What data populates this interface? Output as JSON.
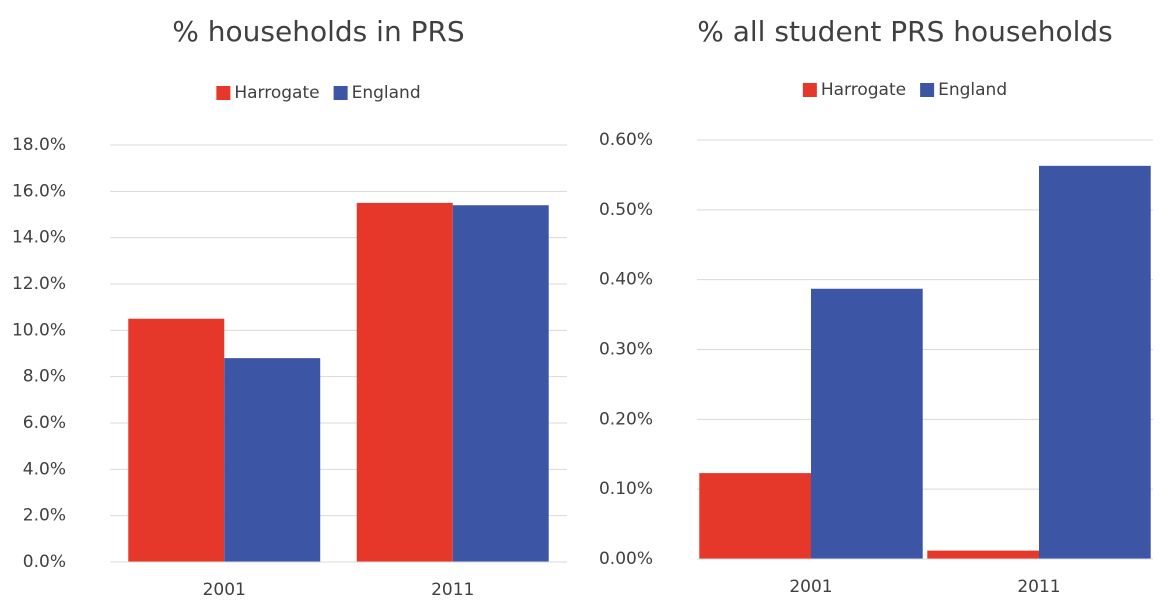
{
  "chart_data": [
    {
      "type": "bar",
      "title": "% households in PRS",
      "categories": [
        "2001",
        "2011"
      ],
      "series": [
        {
          "name": "Harrogate",
          "color": "#e5372a",
          "values": [
            10.5,
            15.5
          ]
        },
        {
          "name": "England",
          "color": "#3c56a5",
          "values": [
            8.8,
            15.4
          ]
        }
      ],
      "ylim": [
        0,
        18
      ],
      "yticks": [
        {
          "value": 0,
          "label": "0.0%"
        },
        {
          "value": 2,
          "label": "2.0%"
        },
        {
          "value": 4,
          "label": "4.0%"
        },
        {
          "value": 6,
          "label": "6.0%"
        },
        {
          "value": 8,
          "label": "8.0%"
        },
        {
          "value": 10,
          "label": "10.0%"
        },
        {
          "value": 12,
          "label": "12.0%"
        },
        {
          "value": 14,
          "label": "14.0%"
        },
        {
          "value": 16,
          "label": "16.0%"
        },
        {
          "value": 18,
          "label": "18.0%"
        }
      ],
      "grid": true,
      "legend": "top"
    },
    {
      "type": "bar",
      "title": "% all student PRS households",
      "categories": [
        "2001",
        "2011"
      ],
      "series": [
        {
          "name": "Harrogate",
          "color": "#e5372a",
          "values": [
            0.123,
            0.012
          ]
        },
        {
          "name": "England",
          "color": "#3c56a5",
          "values": [
            0.387,
            0.563
          ]
        }
      ],
      "ylim": [
        0,
        0.6
      ],
      "yticks": [
        {
          "value": 0,
          "label": "0.00%"
        },
        {
          "value": 0.1,
          "label": "0.10%"
        },
        {
          "value": 0.2,
          "label": "0.20%"
        },
        {
          "value": 0.3,
          "label": "0.30%"
        },
        {
          "value": 0.4,
          "label": "0.40%"
        },
        {
          "value": 0.5,
          "label": "0.50%"
        },
        {
          "value": 0.6,
          "label": "0.60%"
        }
      ],
      "grid": true,
      "legend": "top"
    }
  ]
}
